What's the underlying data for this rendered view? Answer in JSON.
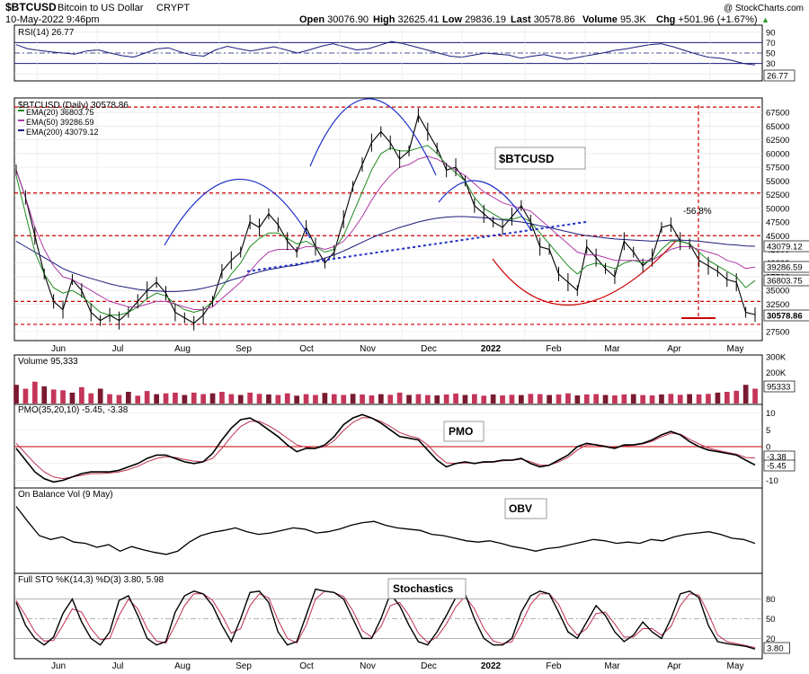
{
  "header": {
    "symbol": "$BTCUSD",
    "name": "Bitcoin to US Dollar",
    "exchange": "CRYPT",
    "datetime": "10-May-2022 9:46pm",
    "copyright": "@ StockCharts.com",
    "quote": [
      {
        "label": "Open",
        "value": "30076.90"
      },
      {
        "label": "High",
        "value": "32625.41"
      },
      {
        "label": "Low",
        "value": "29836.19"
      },
      {
        "label": "Last",
        "value": "30578.86"
      },
      {
        "label": "Volume",
        "value": "95.3K"
      },
      {
        "label": "Chg",
        "value": "+501.96 (+1.67%)"
      }
    ]
  },
  "colors": {
    "price": "#000000",
    "ema20": "#1f8a1f",
    "ema50": "#b03aa8",
    "ema200": "#1a1a7a",
    "annotation_red": "#cc0000",
    "annotation_blue": "#1f2fc8",
    "volume_up": "#c4355a",
    "volume_down": "#7a1a30",
    "pmo_signal": "#c03050",
    "sto_d": "#c03050",
    "panel_border": "#000000",
    "grid": "#e0e0e0"
  },
  "time_axis": {
    "labels": [
      "Jun",
      "Jul",
      "Aug",
      "Sep",
      "Oct",
      "Nov",
      "Dec",
      "2022",
      "Feb",
      "Mar",
      "Apr",
      "May"
    ],
    "bold_label": "2022"
  },
  "annotations": {
    "ticker_label": "$BTCUSD",
    "pmo_label": "PMO",
    "obv_label": "OBV",
    "sto_label": "Stochastics",
    "drop_label": "-56.8%",
    "red_levels": [
      68500,
      52800,
      45000,
      33000,
      28800
    ]
  },
  "chart_data": [
    {
      "panel": "rsi",
      "type": "line",
      "title": "RSI(14) 26.77",
      "ylim": [
        0,
        100
      ],
      "y_ticks": [
        10,
        30,
        50,
        70,
        90
      ],
      "levels": [
        30,
        70
      ],
      "last_value_badge": "26.77",
      "values": [
        66,
        58,
        55,
        52,
        50,
        48,
        54,
        56,
        50,
        45,
        42,
        50,
        58,
        60,
        52,
        46,
        44,
        56,
        63,
        58,
        54,
        58,
        62,
        56,
        50,
        56,
        63,
        68,
        62,
        56,
        58,
        65,
        72,
        68,
        62,
        56,
        50,
        44,
        42,
        46,
        50,
        48,
        46,
        40,
        44,
        47,
        42,
        38,
        42,
        46,
        50,
        55,
        58,
        62,
        66,
        68,
        62,
        55,
        48,
        42,
        40,
        36,
        30,
        27
      ]
    },
    {
      "panel": "price",
      "type": "line",
      "title": "$BTCUSD (Daily) 30578.86",
      "y_axis_side": "right",
      "ylim": [
        26000,
        70000
      ],
      "y_ticks": [
        27500,
        30000,
        32500,
        35000,
        37500,
        40000,
        42500,
        45000,
        47500,
        50000,
        52500,
        55000,
        57500,
        60000,
        62500,
        65000,
        67500
      ],
      "value_badges": [
        {
          "text": "43079.12",
          "value": 43079.12
        },
        {
          "text": "39286.59",
          "value": 39286.59
        },
        {
          "text": "36803.75",
          "value": 36803.75
        },
        {
          "text": "30578.86",
          "value": 30578.86
        }
      ],
      "series": [
        {
          "name": "$BTCUSD (Daily) 30578.86",
          "role": "price",
          "values": [
            57000,
            52000,
            45000,
            38000,
            33000,
            31500,
            37000,
            35000,
            31000,
            29500,
            30500,
            29500,
            31000,
            33000,
            35000,
            36500,
            34500,
            31000,
            30000,
            29000,
            30500,
            33000,
            38500,
            40500,
            42000,
            47500,
            46500,
            49000,
            47000,
            44000,
            42000,
            46500,
            43000,
            40000,
            42000,
            48000,
            54000,
            58000,
            62000,
            64000,
            62000,
            59000,
            60500,
            67000,
            64000,
            61000,
            57000,
            57500,
            55000,
            50500,
            49000,
            47500,
            46500,
            48500,
            50500,
            47500,
            43000,
            42500,
            38000,
            36500,
            35000,
            43000,
            41000,
            39000,
            37500,
            44000,
            42000,
            39500,
            41000,
            46500,
            47000,
            44000,
            43500,
            40500,
            39500,
            38500,
            37000,
            36500,
            31000,
            30578.86
          ]
        },
        {
          "name": "EMA(20) 36803.75",
          "role": "ema20",
          "values": [
            56000,
            49000,
            42000,
            38000,
            35500,
            34500,
            35000,
            34000,
            32500,
            31000,
            30500,
            30500,
            31000,
            32000,
            33500,
            34500,
            34000,
            32500,
            31500,
            31000,
            31500,
            33000,
            35500,
            38000,
            40000,
            43000,
            44500,
            45500,
            45500,
            44500,
            43500,
            44000,
            43000,
            42000,
            42500,
            45000,
            49000,
            53000,
            57000,
            60000,
            61000,
            60500,
            60500,
            61000,
            61500,
            60000,
            58000,
            56500,
            55000,
            52000,
            50000,
            49000,
            48000,
            48000,
            48500,
            47500,
            45500,
            43500,
            41500,
            39500,
            38000,
            39500,
            40000,
            39500,
            39000,
            40000,
            40500,
            40000,
            40500,
            42500,
            44000,
            44000,
            43500,
            42000,
            40500,
            39500,
            38500,
            37500,
            35500,
            36803.75
          ]
        },
        {
          "name": "EMA(50) 39286.59",
          "role": "ema50",
          "values": [
            57000,
            52000,
            46500,
            42500,
            39500,
            37500,
            37000,
            36000,
            35000,
            34000,
            33000,
            32500,
            32000,
            32000,
            32500,
            33000,
            33000,
            32500,
            32000,
            31500,
            31500,
            32000,
            33500,
            35000,
            36500,
            38500,
            40500,
            42000,
            42500,
            42500,
            42500,
            43000,
            43000,
            42500,
            43000,
            44000,
            46000,
            48500,
            51500,
            54000,
            56000,
            57500,
            58000,
            59000,
            59500,
            59000,
            58000,
            57000,
            56000,
            54500,
            53000,
            52000,
            51000,
            50500,
            50000,
            49500,
            48000,
            46500,
            45000,
            43500,
            42000,
            41500,
            41500,
            41000,
            40500,
            40500,
            40500,
            40500,
            40500,
            41500,
            42500,
            43000,
            43000,
            42500,
            42000,
            41500,
            40500,
            40000,
            39000,
            39286.59
          ]
        },
        {
          "name": "EMA(200) 43079.12",
          "role": "ema200",
          "values": [
            44000,
            43000,
            42000,
            41000,
            40000,
            39000,
            38300,
            37700,
            37200,
            36700,
            36200,
            35800,
            35500,
            35200,
            35000,
            34900,
            34800,
            34800,
            34900,
            35100,
            35400,
            35800,
            36300,
            36900,
            37400,
            37900,
            38400,
            38800,
            39100,
            39400,
            39600,
            40000,
            40400,
            40900,
            41500,
            42200,
            43000,
            43800,
            44600,
            45300,
            45900,
            46500,
            47000,
            47500,
            47900,
            48200,
            48400,
            48500,
            48500,
            48400,
            48300,
            48100,
            47900,
            47700,
            47500,
            47200,
            46800,
            46500,
            46100,
            45700,
            45300,
            45000,
            44800,
            44600,
            44400,
            44300,
            44200,
            44100,
            44000,
            44100,
            44200,
            44200,
            44100,
            44000,
            43800,
            43600,
            43400,
            43300,
            43100,
            43079.12
          ]
        }
      ]
    },
    {
      "panel": "volume",
      "type": "bar",
      "title": "Volume 95,333",
      "ylim": [
        0,
        300000
      ],
      "y_ticks_labels": [
        "300K",
        "200K",
        "100K"
      ],
      "y_ticks_values": [
        300000,
        200000,
        100000
      ],
      "last_value_badge": "95333",
      "values": [
        120000,
        95000,
        140000,
        110000,
        90000,
        85000,
        70000,
        105000,
        65000,
        95000,
        60000,
        55000,
        75000,
        50000,
        80000,
        60000,
        65000,
        70000,
        55000,
        70000,
        60000,
        65000,
        75000,
        60000,
        55000,
        70000,
        62000,
        58000,
        55000,
        65000,
        50000,
        60000,
        55000,
        68000,
        60000,
        55000,
        62000,
        58000,
        52000,
        60000,
        56000,
        70000,
        55000,
        60000,
        54000,
        52000,
        58000,
        64000,
        55000,
        60000,
        50000,
        58000,
        52000,
        56000,
        54000,
        62000,
        60000,
        55000,
        58000,
        65000,
        52000,
        58000,
        60000,
        55000,
        52000,
        58000,
        60000,
        54000,
        52000,
        58000,
        62000,
        56000,
        60000,
        58000,
        62000,
        70000,
        75000,
        82000,
        120000,
        95333
      ]
    },
    {
      "panel": "pmo",
      "type": "line",
      "title": "PMO(35,20,10) -5.45, -3.38",
      "ylim": [
        -12,
        12
      ],
      "y_ticks": [
        10,
        5,
        0,
        -5,
        -10
      ],
      "zero_line": true,
      "value_badges": [
        {
          "text": "-3.38",
          "value": -3.38
        },
        {
          "text": "-5.45",
          "value": -5.45
        }
      ],
      "series": [
        {
          "name": "PMO",
          "values": [
            -0.5,
            -4,
            -7.5,
            -9.5,
            -10.5,
            -10,
            -9,
            -8,
            -7.5,
            -7.5,
            -7.5,
            -7,
            -6,
            -5,
            -3.5,
            -2.5,
            -2.5,
            -3.5,
            -4.5,
            -5,
            -4.5,
            -2,
            2,
            5.5,
            8,
            8.5,
            7,
            5,
            3,
            0.5,
            -1.5,
            -0.5,
            -0.5,
            0.5,
            3,
            6.5,
            8.5,
            9.5,
            8.5,
            7,
            5,
            3,
            2.5,
            2,
            -1,
            -4,
            -6,
            -5,
            -4.5,
            -5,
            -4.5,
            -4.5,
            -4,
            -4,
            -3.5,
            -5,
            -6,
            -5.5,
            -4,
            -2.5,
            0,
            1,
            0.5,
            0,
            -0.5,
            0.5,
            0.5,
            1,
            2,
            3.5,
            4.5,
            3.5,
            1.5,
            0,
            -1,
            -1.5,
            -2,
            -2.5,
            -4,
            -5.45
          ]
        },
        {
          "name": "Signal",
          "values": [
            1,
            -2,
            -5,
            -7.5,
            -9,
            -9.5,
            -9,
            -8.5,
            -8,
            -8,
            -7.8,
            -7.5,
            -6.8,
            -5.8,
            -4.5,
            -3.5,
            -3,
            -3.2,
            -3.8,
            -4.3,
            -4.5,
            -3.5,
            -0.5,
            3,
            6,
            7.5,
            7.5,
            6.2,
            4.5,
            2.5,
            0.5,
            -0.2,
            -0.5,
            0,
            1.8,
            4.8,
            7.2,
            8.6,
            8.5,
            7.5,
            6,
            4.2,
            3.2,
            2.5,
            0.5,
            -2.5,
            -4.8,
            -5,
            -4.8,
            -4.9,
            -4.7,
            -4.6,
            -4.2,
            -4.1,
            -3.7,
            -4.5,
            -5.5,
            -5.5,
            -4.5,
            -3.2,
            -1,
            0.5,
            0.6,
            0.2,
            -0.3,
            0.2,
            0.4,
            0.8,
            1.6,
            2.9,
            4,
            3.7,
            2.2,
            0.8,
            -0.4,
            -1.1,
            -1.7,
            -2.2,
            -3.2,
            -3.38
          ]
        }
      ]
    },
    {
      "panel": "obv",
      "type": "line",
      "title": "On Balance Vol (9 May)",
      "ylim": [
        0,
        100
      ],
      "values": [
        95,
        72,
        50,
        44,
        48,
        40,
        38,
        32,
        36,
        26,
        33,
        28,
        24,
        21,
        26,
        40,
        50,
        55,
        58,
        62,
        56,
        52,
        54,
        58,
        62,
        60,
        54,
        56,
        60,
        66,
        70,
        72,
        66,
        62,
        60,
        58,
        52,
        50,
        46,
        42,
        40,
        42,
        38,
        33,
        30,
        26,
        30,
        32,
        36,
        40,
        44,
        42,
        38,
        40,
        38,
        44,
        42,
        48,
        52,
        54,
        56,
        52,
        46,
        44,
        38
      ]
    },
    {
      "panel": "stochastics",
      "type": "line",
      "title": "Full STO %K(14,3) %D(3) 3.80, 5.98",
      "ylim": [
        0,
        100
      ],
      "y_ticks": [
        20,
        50,
        80
      ],
      "levels": [
        20,
        80
      ],
      "last_value_badge": "3.80",
      "series": [
        {
          "name": "%K",
          "values": [
            75,
            40,
            20,
            10,
            22,
            58,
            80,
            45,
            20,
            10,
            30,
            78,
            85,
            55,
            20,
            10,
            15,
            60,
            85,
            92,
            88,
            70,
            40,
            15,
            50,
            90,
            92,
            75,
            30,
            10,
            15,
            55,
            95,
            92,
            90,
            80,
            50,
            20,
            20,
            50,
            88,
            70,
            40,
            15,
            10,
            30,
            55,
            82,
            88,
            50,
            20,
            10,
            10,
            20,
            60,
            85,
            92,
            88,
            60,
            30,
            20,
            45,
            70,
            55,
            30,
            15,
            25,
            45,
            30,
            20,
            50,
            88,
            92,
            82,
            40,
            15,
            12,
            10,
            8,
            3.8
          ]
        },
        {
          "name": "%D",
          "values": [
            78,
            55,
            30,
            16,
            17,
            40,
            65,
            60,
            35,
            18,
            20,
            55,
            80,
            65,
            35,
            16,
            13,
            40,
            70,
            88,
            88,
            78,
            55,
            28,
            35,
            70,
            88,
            82,
            48,
            20,
            13,
            40,
            80,
            92,
            90,
            84,
            62,
            32,
            22,
            38,
            70,
            75,
            55,
            28,
            14,
            22,
            42,
            68,
            84,
            65,
            35,
            16,
            12,
            15,
            42,
            72,
            88,
            88,
            72,
            42,
            25,
            35,
            58,
            60,
            42,
            22,
            22,
            35,
            35,
            25,
            38,
            70,
            88,
            86,
            58,
            25,
            15,
            12,
            9,
            5.98
          ]
        }
      ]
    }
  ]
}
